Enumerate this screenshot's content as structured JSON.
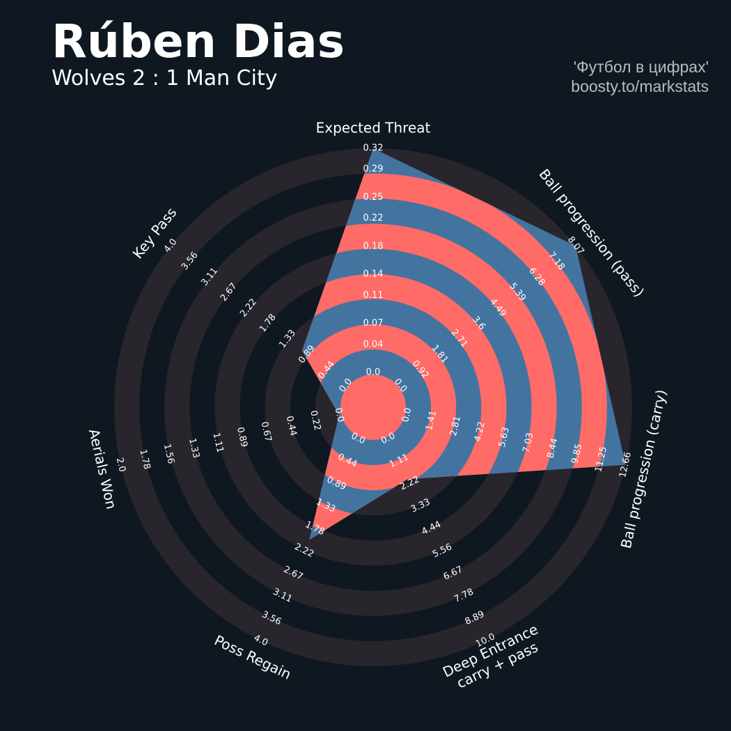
{
  "chart_data": {
    "type": "radar",
    "title": "Rúben Dias",
    "subtitle": "Wolves 2 : 1 Man City",
    "credits": [
      "'Футбол в цифрах'",
      "boosty.to/markstats"
    ],
    "categories": [
      "Expected Threat",
      "Ball progression (pass)",
      "Ball progression (carry)",
      [
        "Deep Entrance",
        "carry + pass"
      ],
      "Poss Regain",
      "Aerials Won",
      "Key Pass"
    ],
    "values": [
      0.32,
      8.07,
      12.66,
      2,
      2,
      0,
      1
    ],
    "ranges": [
      [
        0,
        0.32
      ],
      [
        0,
        8.07
      ],
      [
        0,
        12.66
      ],
      [
        0,
        10
      ],
      [
        0,
        4
      ],
      [
        0,
        2
      ],
      [
        0,
        4
      ]
    ],
    "ticks": [
      [
        {
          "value": 0,
          "label": "0.0"
        },
        0.04,
        0.07,
        0.11,
        0.14,
        0.18,
        0.22,
        0.25,
        0.29,
        0.32
      ],
      [
        {
          "value": 0,
          "label": "0.0"
        },
        0.92,
        1.81,
        2.71,
        3.6,
        4.49,
        5.39,
        6.28,
        7.18,
        8.07
      ],
      [
        {
          "value": 0,
          "label": "0.0"
        },
        1.41,
        2.81,
        4.22,
        5.63,
        7.03,
        8.44,
        9.85,
        11.25,
        12.66
      ],
      [
        {
          "value": 0,
          "label": "0.0"
        },
        1.11,
        2.22,
        3.33,
        4.44,
        5.56,
        6.67,
        7.78,
        8.89,
        {
          "value": 10,
          "label": "10.0"
        }
      ],
      [
        {
          "value": 0,
          "label": "0.0"
        },
        0.44,
        0.89,
        1.33,
        1.78,
        2.22,
        2.67,
        3.11,
        3.56,
        {
          "value": 4,
          "label": "4.0"
        }
      ],
      [
        {
          "value": 0,
          "label": "0.0"
        },
        0.22,
        0.44,
        0.67,
        0.89,
        1.11,
        1.33,
        1.56,
        1.78,
        {
          "value": 2,
          "label": "2.0"
        }
      ],
      [
        {
          "value": 0,
          "label": "0.0"
        },
        0.44,
        0.89,
        1.33,
        1.78,
        2.22,
        2.67,
        3.11,
        3.56,
        {
          "value": 4,
          "label": "4.0"
        }
      ]
    ],
    "color": "#4374a0",
    "ring_color": "#ff6b67"
  }
}
